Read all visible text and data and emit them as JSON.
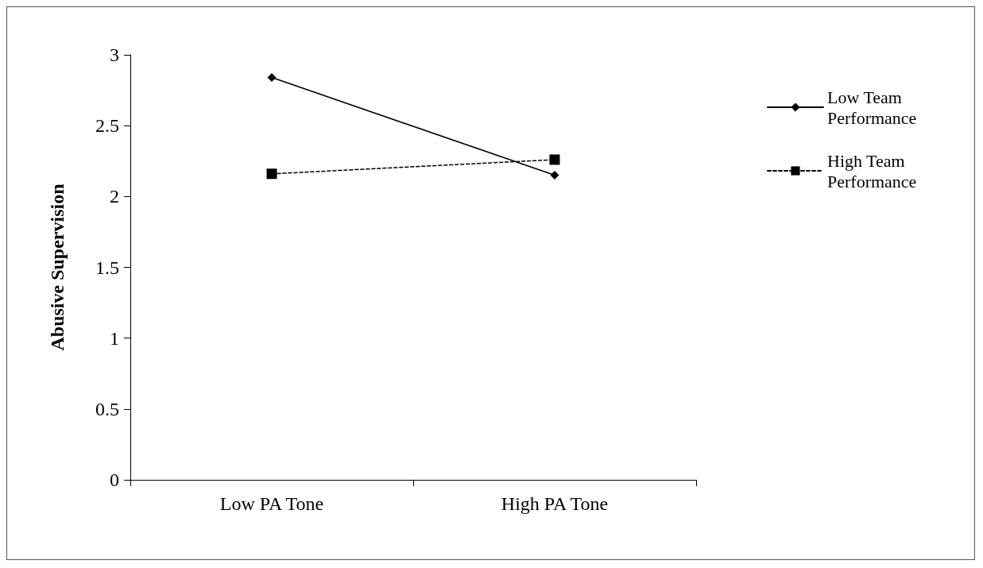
{
  "chart_data": {
    "type": "line",
    "ylabel": "Abusive Supervision",
    "categories": [
      "Low PA Tone",
      "High PA Tone"
    ],
    "series": [
      {
        "name": "Low Team Performance",
        "color": "#000000",
        "values": [
          2.84,
          2.15
        ],
        "marker": "diamond",
        "line_style": "solid"
      },
      {
        "name": "High Team Performance",
        "color": "#000000",
        "values": [
          2.16,
          2.26
        ],
        "marker": "square",
        "line_style": "dashed"
      }
    ],
    "ylim": [
      0,
      3
    ],
    "yticks": [
      0,
      0.5,
      1,
      1.5,
      2,
      2.5,
      3
    ],
    "grid": false,
    "legend": "right"
  }
}
